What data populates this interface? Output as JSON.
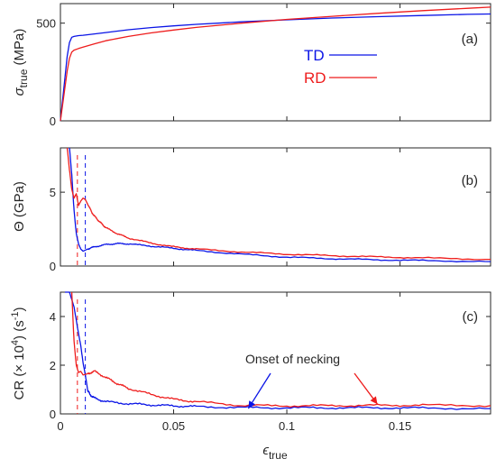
{
  "colors": {
    "TD": "#0a14e6",
    "RD": "#ee1c1c",
    "axis": "#262626"
  },
  "chart_data": [
    {
      "panel": "(a)",
      "type": "line",
      "xlabel": "",
      "ylabel": {
        "main": "σ",
        "sub": "true",
        "rest": " (MPa)"
      },
      "xlim": [
        0,
        0.19
      ],
      "ylim": [
        0,
        600
      ],
      "xticks": [
        0,
        0.05,
        0.1,
        0.15
      ],
      "yticks": [
        0,
        500
      ],
      "ytick_labels": [
        "0",
        "500"
      ],
      "legend": [
        {
          "name": "TD",
          "color": "#0a14e6"
        },
        {
          "name": "RD",
          "color": "#ee1c1c"
        }
      ],
      "series": [
        {
          "name": "TD",
          "color": "#0a14e6",
          "x": [
            0,
            0.001,
            0.002,
            0.003,
            0.004,
            0.005,
            0.006,
            0.008,
            0.01,
            0.015,
            0.02,
            0.03,
            0.04,
            0.05,
            0.06,
            0.08,
            0.1,
            0.12,
            0.14,
            0.16,
            0.18,
            0.19
          ],
          "y": [
            0,
            110,
            220,
            330,
            400,
            428,
            432,
            436,
            438,
            445,
            452,
            466,
            477,
            486,
            494,
            507,
            517,
            526,
            533,
            539,
            545,
            547
          ]
        },
        {
          "name": "RD",
          "color": "#ee1c1c",
          "x": [
            0,
            0.001,
            0.002,
            0.003,
            0.004,
            0.005,
            0.006,
            0.008,
            0.01,
            0.015,
            0.02,
            0.03,
            0.04,
            0.05,
            0.06,
            0.08,
            0.1,
            0.12,
            0.14,
            0.16,
            0.18,
            0.19
          ],
          "y": [
            0,
            85,
            170,
            255,
            320,
            352,
            362,
            370,
            377,
            394,
            410,
            432,
            450,
            465,
            478,
            500,
            519,
            535,
            550,
            564,
            576,
            582
          ]
        }
      ]
    },
    {
      "panel": "(b)",
      "type": "line",
      "xlabel": "",
      "ylabel": {
        "main": "Θ (GPa)"
      },
      "xlim": [
        0,
        0.19
      ],
      "ylim": [
        0,
        8
      ],
      "xticks": [
        0,
        0.05,
        0.1,
        0.15
      ],
      "yticks": [
        0,
        5
      ],
      "ytick_labels": [
        "0",
        "5"
      ],
      "series": [
        {
          "name": "TD",
          "color": "#0a14e6",
          "x": [
            0.004,
            0.005,
            0.006,
            0.007,
            0.008,
            0.009,
            0.01,
            0.012,
            0.015,
            0.02,
            0.025,
            0.03,
            0.04,
            0.05,
            0.06,
            0.08,
            0.1,
            0.12,
            0.14,
            0.16,
            0.19
          ],
          "y": [
            8,
            6.2,
            3.8,
            2.2,
            1.5,
            1.15,
            1.0,
            1.15,
            1.3,
            1.45,
            1.52,
            1.5,
            1.35,
            1.2,
            1.05,
            0.8,
            0.6,
            0.5,
            0.42,
            0.37,
            0.3
          ]
        },
        {
          "name": "RD",
          "color": "#ee1c1c",
          "x": [
            0.003,
            0.004,
            0.005,
            0.006,
            0.007,
            0.008,
            0.009,
            0.01,
            0.011,
            0.012,
            0.014,
            0.016,
            0.018,
            0.02,
            0.025,
            0.03,
            0.04,
            0.05,
            0.06,
            0.08,
            0.1,
            0.12,
            0.14,
            0.16,
            0.19
          ],
          "y": [
            8,
            6.5,
            5.2,
            4.6,
            4.9,
            4.1,
            4.4,
            4.6,
            4.5,
            4.2,
            3.6,
            3.2,
            2.9,
            2.6,
            2.2,
            1.9,
            1.55,
            1.3,
            1.15,
            0.95,
            0.8,
            0.7,
            0.62,
            0.55,
            0.45
          ]
        }
      ],
      "dashed_markers": [
        0.0075,
        0.011
      ]
    },
    {
      "panel": "(c)",
      "type": "line",
      "xlabel": {
        "main": "ϵ",
        "sub": "true"
      },
      "ylabel": {
        "pre": "CR (× 10",
        "sup1": "4",
        "mid": ") (s",
        "sup2": "-1",
        "post": ")"
      },
      "xlim": [
        0,
        0.19
      ],
      "ylim": [
        0,
        5
      ],
      "xticks": [
        0,
        0.05,
        0.1,
        0.15
      ],
      "xtick_labels": [
        "0",
        "0.05",
        "0.1",
        "0.15"
      ],
      "yticks": [
        0,
        2,
        4
      ],
      "ytick_labels": [
        "0",
        "2",
        "4"
      ],
      "series": [
        {
          "name": "TD",
          "color": "#0a14e6",
          "x": [
            0.002,
            0.004,
            0.006,
            0.008,
            0.009,
            0.01,
            0.011,
            0.012,
            0.013,
            0.015,
            0.02,
            0.03,
            0.04,
            0.05,
            0.06,
            0.08,
            0.1,
            0.12,
            0.14,
            0.16,
            0.19
          ],
          "y": [
            5,
            5,
            4.4,
            3.3,
            2.8,
            2.1,
            1.6,
            1.0,
            0.8,
            0.65,
            0.5,
            0.42,
            0.37,
            0.33,
            0.3,
            0.26,
            0.25,
            0.25,
            0.25,
            0.24,
            0.22
          ]
        },
        {
          "name": "RD",
          "color": "#ee1c1c",
          "x": [
            0.005,
            0.006,
            0.007,
            0.008,
            0.009,
            0.01,
            0.012,
            0.015,
            0.02,
            0.025,
            0.03,
            0.04,
            0.05,
            0.06,
            0.08,
            0.1,
            0.12,
            0.14,
            0.16,
            0.19
          ],
          "y": [
            5,
            3.0,
            2.0,
            1.7,
            1.75,
            1.6,
            1.65,
            1.75,
            1.5,
            1.25,
            1.05,
            0.8,
            0.6,
            0.5,
            0.35,
            0.33,
            0.34,
            0.35,
            0.36,
            0.34
          ]
        }
      ],
      "dashed_markers": [
        0.0075,
        0.011
      ],
      "annotation": {
        "text": "Onset of necking",
        "arrows": [
          {
            "color": "#0a14e6",
            "tip_x": 0.083,
            "tip_y": 0.22
          },
          {
            "color": "#ee1c1c",
            "tip_x": 0.14,
            "tip_y": 0.4
          }
        ]
      }
    }
  ]
}
